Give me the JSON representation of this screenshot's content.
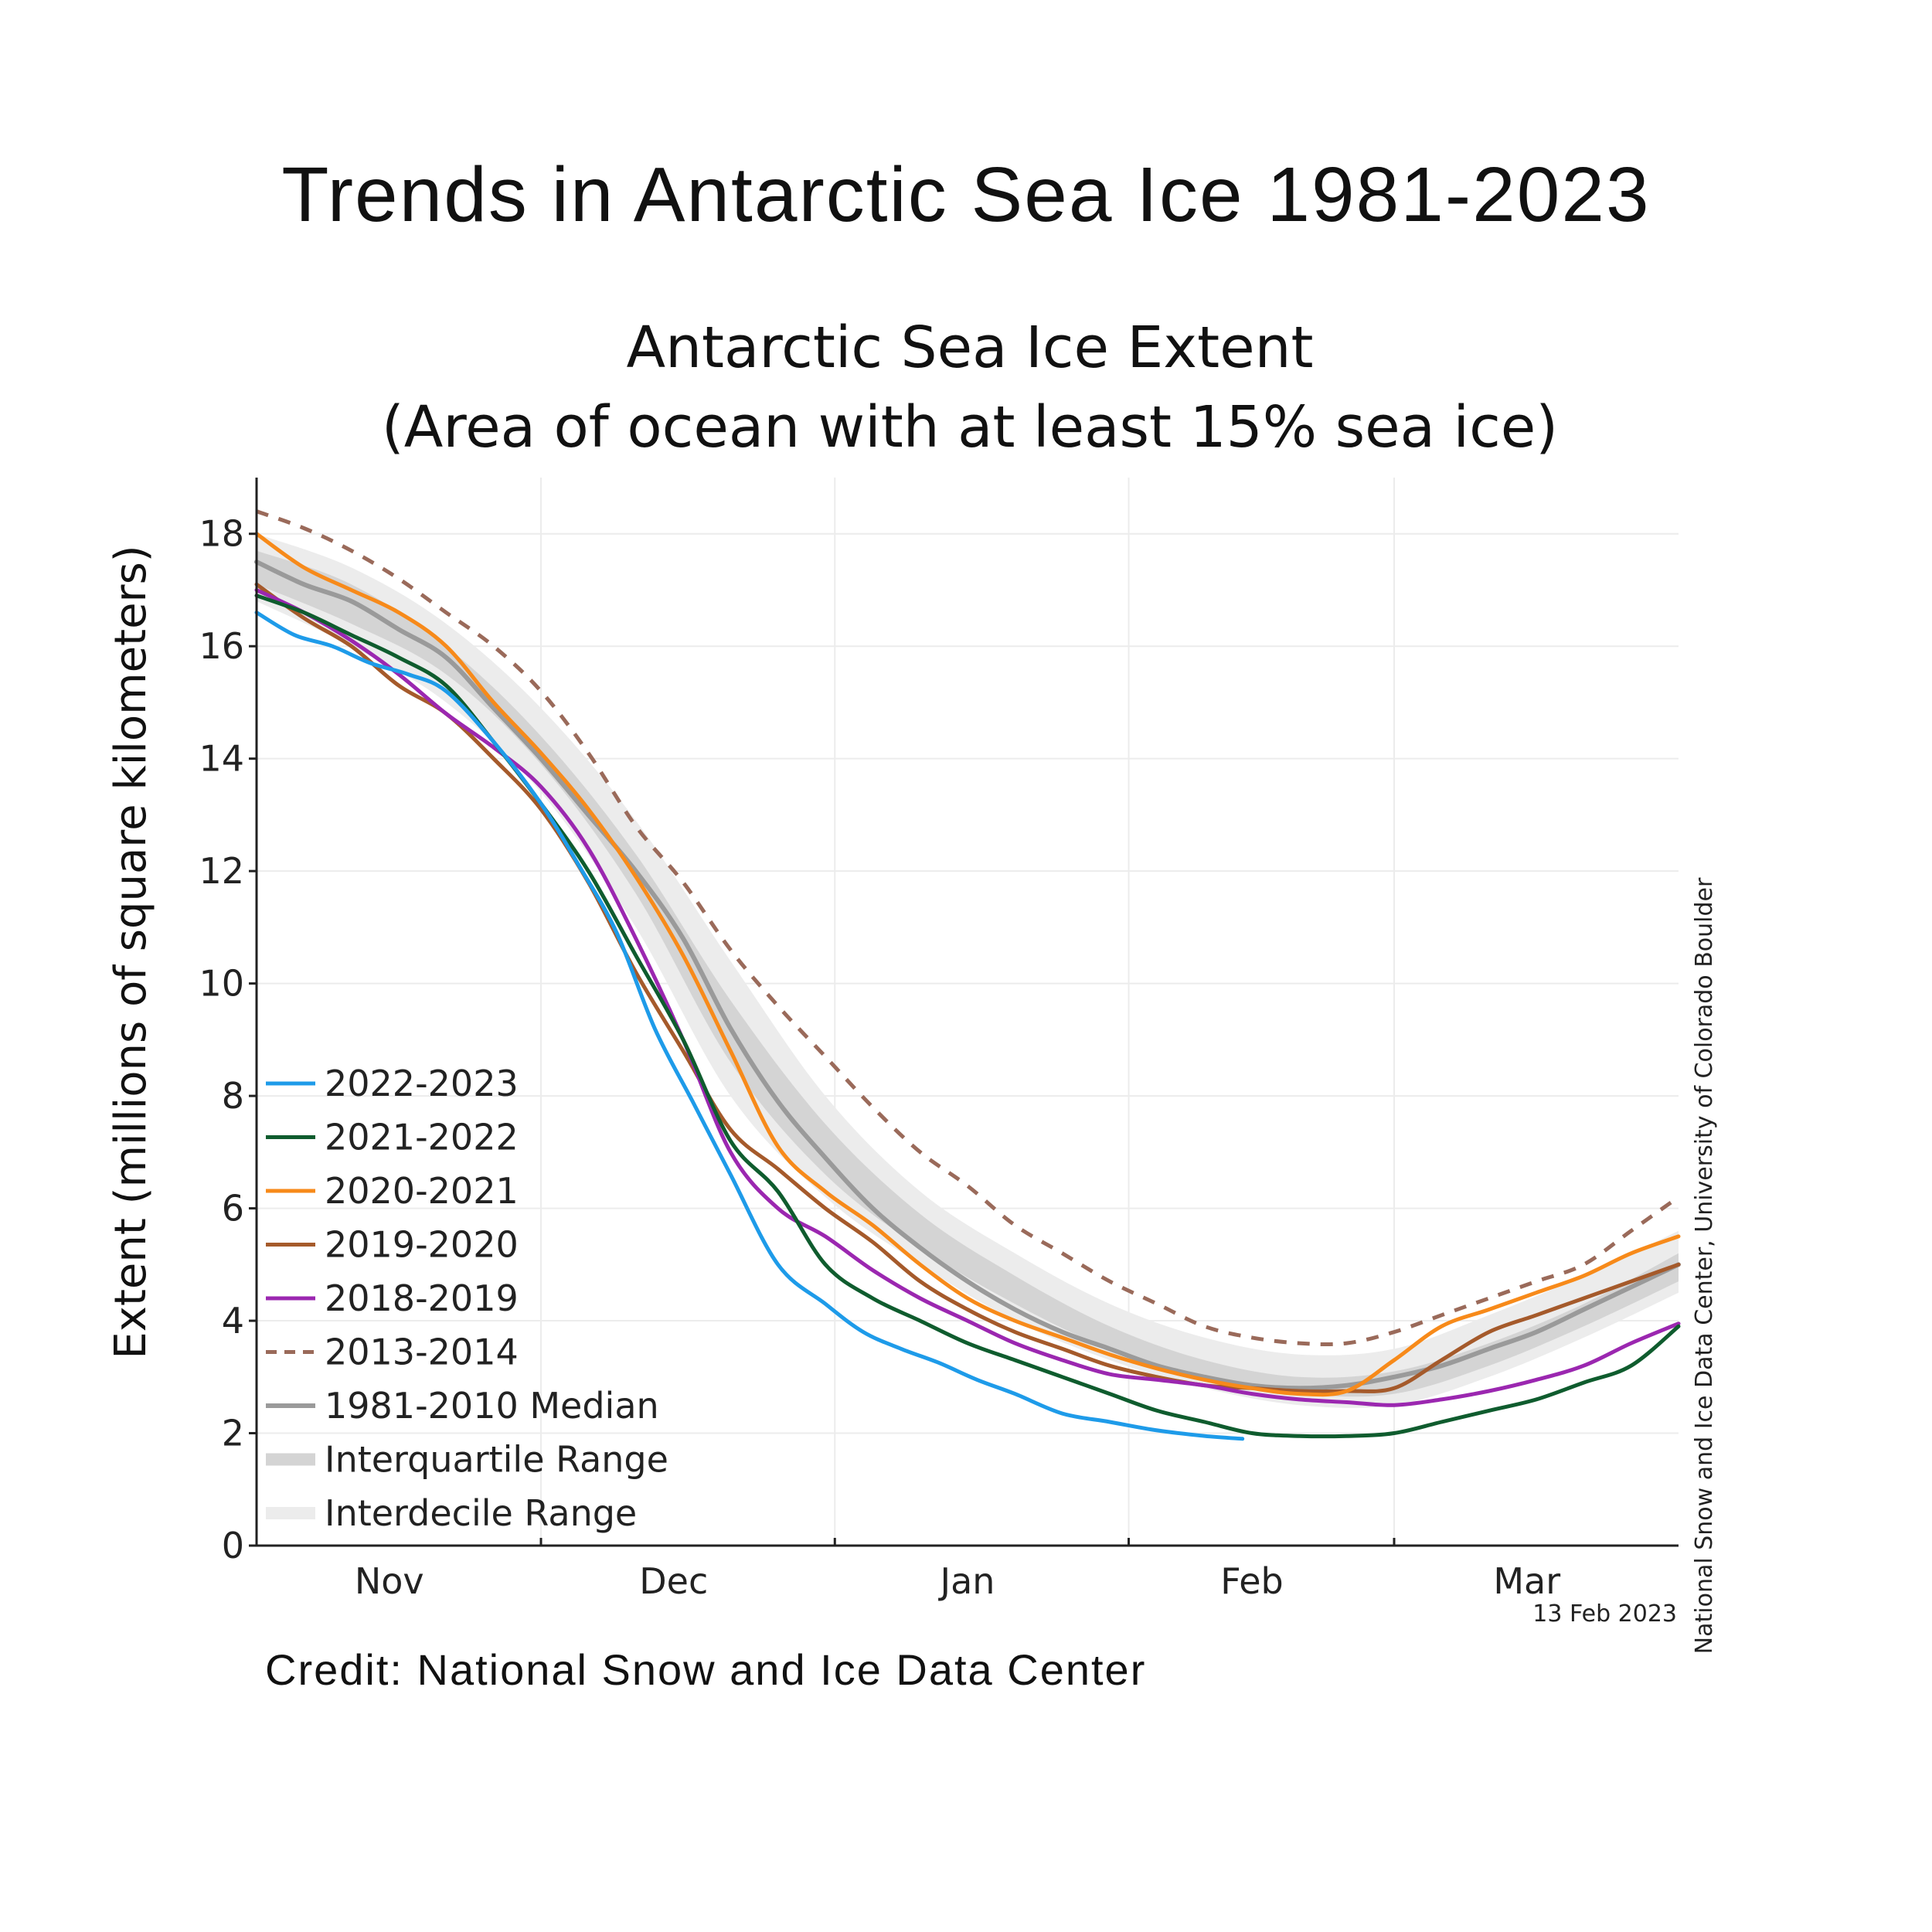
{
  "headline": "Trends in Antarctic Sea Ice 1981-2023",
  "credit": "Credit: National Snow and Ice Data Center",
  "chart_data": {
    "type": "line",
    "title_line1": "Antarctic Sea Ice Extent",
    "title_line2": "(Area of ocean with at least 15% sea ice)",
    "ylabel": "Extent (millions of square kilometers)",
    "xlabel": "",
    "side_note": "National Snow and Ice Data Center, University of Colorado Boulder",
    "date_stamp": "13 Feb 2023",
    "x_unit": "days since 15 Oct",
    "xlim": [
      0,
      150
    ],
    "ylim": [
      0,
      19
    ],
    "y_ticks": [
      0,
      2,
      4,
      6,
      8,
      10,
      12,
      14,
      16,
      18
    ],
    "x_ticks": [
      {
        "label": "Nov",
        "x": 14
      },
      {
        "label": "Dec",
        "x": 44
      },
      {
        "label": "Jan",
        "x": 75
      },
      {
        "label": "Feb",
        "x": 105
      },
      {
        "label": "Mar",
        "x": 134
      }
    ],
    "month_dividers": [
      30,
      61,
      92,
      120
    ],
    "grid": true,
    "legend_position": "lower-left",
    "colors": {
      "y2022_2023": "#1e9be9",
      "y2021_2022": "#0f5c2e",
      "y2020_2021": "#f78a1a",
      "y2019_2020": "#a55a2b",
      "y2018_2019": "#9b27b0",
      "y2013_2014": "#9a6a5a",
      "median": "#9a9a9a",
      "interquartile": "#d4d4d4",
      "interdecile": "#ececec"
    },
    "interdecile_range": {
      "x": [
        0,
        10,
        20,
        30,
        40,
        50,
        60,
        70,
        80,
        90,
        100,
        110,
        120,
        130,
        140,
        150
      ],
      "lower": [
        16.8,
        16.0,
        15.0,
        13.4,
        11.0,
        8.0,
        6.2,
        5.0,
        4.0,
        3.3,
        2.8,
        2.5,
        2.5,
        3.0,
        3.7,
        4.5
      ],
      "upper": [
        18.0,
        17.4,
        16.4,
        14.9,
        12.9,
        10.4,
        8.0,
        6.3,
        5.2,
        4.3,
        3.7,
        3.4,
        3.5,
        4.1,
        4.8,
        5.6
      ]
    },
    "interquartile_range": {
      "x": [
        0,
        10,
        20,
        30,
        40,
        50,
        60,
        70,
        80,
        90,
        100,
        110,
        120,
        130,
        140,
        150
      ],
      "lower": [
        17.1,
        16.4,
        15.5,
        13.9,
        11.6,
        8.6,
        6.6,
        5.3,
        4.3,
        3.5,
        3.0,
        2.7,
        2.7,
        3.2,
        3.9,
        4.7
      ],
      "upper": [
        17.7,
        17.1,
        16.0,
        14.4,
        12.3,
        9.7,
        7.5,
        5.9,
        4.8,
        3.9,
        3.3,
        3.0,
        3.1,
        3.6,
        4.3,
        5.2
      ]
    },
    "series": [
      {
        "name": "2022-2023",
        "key": "y2022_2023",
        "dashed": false,
        "x": [
          0,
          4,
          8,
          12,
          16,
          20,
          25,
          30,
          34,
          38,
          42,
          46,
          50,
          55,
          60,
          64,
          68,
          72,
          76,
          80,
          85,
          90,
          95,
          100,
          104
        ],
        "values": [
          16.6,
          16.2,
          16.0,
          15.7,
          15.5,
          15.2,
          14.3,
          13.2,
          12.1,
          10.9,
          9.2,
          7.9,
          6.6,
          5.0,
          4.3,
          3.8,
          3.5,
          3.25,
          2.95,
          2.7,
          2.35,
          2.2,
          2.05,
          1.95,
          1.9
        ]
      },
      {
        "name": "2021-2022",
        "key": "y2021_2022",
        "dashed": false,
        "x": [
          0,
          5,
          10,
          15,
          20,
          25,
          30,
          35,
          40,
          45,
          50,
          55,
          60,
          65,
          70,
          75,
          80,
          85,
          90,
          95,
          100,
          105,
          110,
          115,
          120,
          125,
          130,
          135,
          140,
          145,
          150
        ],
        "values": [
          16.9,
          16.6,
          16.2,
          15.8,
          15.3,
          14.3,
          13.2,
          12.0,
          10.5,
          9.0,
          7.2,
          6.3,
          5.0,
          4.4,
          4.0,
          3.6,
          3.3,
          3.0,
          2.7,
          2.4,
          2.2,
          2.0,
          1.95,
          1.95,
          2.0,
          2.2,
          2.4,
          2.6,
          2.9,
          3.2,
          3.9
        ]
      },
      {
        "name": "2020-2021",
        "key": "y2020_2021",
        "dashed": false,
        "x": [
          0,
          5,
          10,
          15,
          20,
          25,
          30,
          35,
          40,
          45,
          50,
          55,
          60,
          65,
          70,
          75,
          80,
          85,
          90,
          95,
          100,
          105,
          110,
          115,
          120,
          125,
          130,
          135,
          140,
          145,
          150
        ],
        "values": [
          18.0,
          17.4,
          17.0,
          16.6,
          16.0,
          15.0,
          14.1,
          13.1,
          11.9,
          10.5,
          8.8,
          7.1,
          6.3,
          5.7,
          5.0,
          4.4,
          4.0,
          3.7,
          3.4,
          3.15,
          2.95,
          2.8,
          2.7,
          2.75,
          3.3,
          3.9,
          4.2,
          4.5,
          4.8,
          5.2,
          5.5
        ]
      },
      {
        "name": "2019-2020",
        "key": "y2019_2020",
        "dashed": false,
        "x": [
          0,
          5,
          10,
          15,
          20,
          25,
          30,
          35,
          40,
          45,
          50,
          55,
          60,
          65,
          70,
          75,
          80,
          85,
          90,
          95,
          100,
          105,
          110,
          115,
          120,
          125,
          130,
          135,
          140,
          145,
          150
        ],
        "values": [
          17.1,
          16.5,
          16.0,
          15.3,
          14.8,
          14.0,
          13.1,
          11.8,
          10.2,
          8.8,
          7.4,
          6.7,
          6.0,
          5.4,
          4.7,
          4.2,
          3.8,
          3.5,
          3.2,
          3.0,
          2.85,
          2.8,
          2.75,
          2.75,
          2.8,
          3.3,
          3.8,
          4.1,
          4.4,
          4.7,
          5.0
        ]
      },
      {
        "name": "2018-2019",
        "key": "y2018_2019",
        "dashed": false,
        "x": [
          0,
          5,
          10,
          15,
          20,
          25,
          30,
          35,
          40,
          45,
          50,
          55,
          60,
          65,
          70,
          75,
          80,
          85,
          90,
          95,
          100,
          105,
          110,
          115,
          120,
          125,
          130,
          135,
          140,
          145,
          150
        ],
        "values": [
          17.0,
          16.6,
          16.1,
          15.5,
          14.8,
          14.2,
          13.5,
          12.4,
          10.8,
          9.0,
          7.0,
          6.0,
          5.5,
          4.9,
          4.4,
          4.0,
          3.6,
          3.3,
          3.05,
          2.95,
          2.85,
          2.7,
          2.6,
          2.55,
          2.5,
          2.6,
          2.75,
          2.95,
          3.2,
          3.6,
          3.95
        ]
      },
      {
        "name": "2013-2014",
        "key": "y2013_2014",
        "dashed": true,
        "x": [
          0,
          5,
          10,
          15,
          20,
          25,
          30,
          35,
          40,
          45,
          50,
          55,
          60,
          65,
          70,
          75,
          80,
          85,
          90,
          95,
          100,
          105,
          110,
          115,
          120,
          125,
          130,
          135,
          140,
          145,
          150
        ],
        "values": [
          18.4,
          18.1,
          17.7,
          17.2,
          16.6,
          16.0,
          15.2,
          14.1,
          12.8,
          11.8,
          10.6,
          9.6,
          8.7,
          7.8,
          7.0,
          6.4,
          5.7,
          5.2,
          4.7,
          4.3,
          3.9,
          3.7,
          3.6,
          3.6,
          3.8,
          4.1,
          4.4,
          4.7,
          5.0,
          5.6,
          6.2
        ]
      },
      {
        "name": "1981-2010 Median",
        "key": "median",
        "dashed": false,
        "x": [
          0,
          5,
          10,
          15,
          20,
          25,
          30,
          35,
          40,
          45,
          50,
          55,
          60,
          65,
          70,
          75,
          80,
          85,
          90,
          95,
          100,
          105,
          110,
          115,
          120,
          125,
          130,
          135,
          140,
          145,
          150
        ],
        "values": [
          17.5,
          17.1,
          16.8,
          16.3,
          15.8,
          14.9,
          14.0,
          13.0,
          12.0,
          10.8,
          9.2,
          7.9,
          6.9,
          6.0,
          5.3,
          4.7,
          4.2,
          3.8,
          3.5,
          3.2,
          3.0,
          2.85,
          2.8,
          2.85,
          3.0,
          3.2,
          3.5,
          3.8,
          4.2,
          4.6,
          5.0
        ]
      }
    ],
    "legend": [
      {
        "label": "2022-2023",
        "key": "y2022_2023",
        "style": "line"
      },
      {
        "label": "2021-2022",
        "key": "y2021_2022",
        "style": "line"
      },
      {
        "label": "2020-2021",
        "key": "y2020_2021",
        "style": "line"
      },
      {
        "label": "2019-2020",
        "key": "y2019_2020",
        "style": "line"
      },
      {
        "label": "2018-2019",
        "key": "y2018_2019",
        "style": "line"
      },
      {
        "label": "2013-2014",
        "key": "y2013_2014",
        "style": "dashed"
      },
      {
        "label": "1981-2010 Median",
        "key": "median",
        "style": "line"
      },
      {
        "label": "Interquartile Range",
        "key": "interquartile",
        "style": "band"
      },
      {
        "label": "Interdecile Range",
        "key": "interdecile",
        "style": "band"
      }
    ]
  }
}
